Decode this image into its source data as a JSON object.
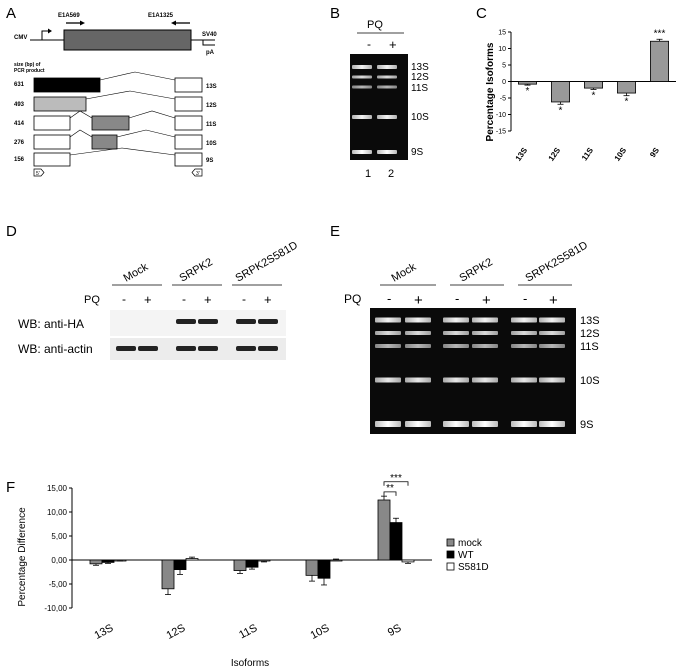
{
  "panel_letters": [
    "A",
    "B",
    "C",
    "D",
    "E",
    "F"
  ],
  "panelA": {
    "cmv": "CMV",
    "primer_fwd": "E1A569",
    "primer_rev": "E1A1325",
    "sv40": "SV40",
    "pa": "pA",
    "size_header_1": "size (bp) of",
    "size_header_2": "PCR product",
    "rows": [
      {
        "size": "631",
        "isoform": "13S"
      },
      {
        "size": "493",
        "isoform": "12S"
      },
      {
        "size": "414",
        "isoform": "11S"
      },
      {
        "size": "276",
        "isoform": "10S"
      },
      {
        "size": "156",
        "isoform": "9S"
      }
    ],
    "exon_left": "5'",
    "exon_right": "3'"
  },
  "panelB": {
    "treatment": "PQ",
    "minus": "-",
    "plus": "+",
    "bands": [
      "13S",
      "12S",
      "11S",
      "10S",
      "9S"
    ],
    "lanes": [
      "1",
      "2"
    ]
  },
  "panelE": {
    "treatment": "PQ",
    "groups": [
      "Mock",
      "SRPK2",
      "SRPK2S581D"
    ],
    "minus": "-",
    "plus": "+",
    "bands": [
      "13S",
      "12S",
      "11S",
      "10S",
      "9S"
    ]
  },
  "panelD": {
    "treatment": "PQ",
    "groups": [
      "Mock",
      "SRPK2",
      "SRPK2S581D"
    ],
    "minus": "-",
    "plus": "+",
    "blot1": "WB: anti-HA",
    "blot2": "WB: anti-actin"
  },
  "chart_data": [
    {
      "type": "bar",
      "panel": "C",
      "ylabel": "Percentage Isoforms",
      "categories": [
        "13S",
        "12S",
        "11S",
        "10S",
        "9S"
      ],
      "values": [
        -0.8,
        -6.2,
        -2.0,
        -3.5,
        12.2
      ],
      "errors": [
        0.3,
        0.7,
        0.4,
        0.8,
        0.6
      ],
      "significance": [
        "*",
        "*",
        "*",
        "*",
        "***"
      ],
      "ylim": [
        -15,
        15
      ],
      "yticks": [
        "-15",
        "-10",
        "-5",
        "0",
        "5",
        "10",
        "15"
      ]
    },
    {
      "type": "bar",
      "panel": "F",
      "xlabel": "Isoforms",
      "ylabel": "Percentage Difference",
      "categories": [
        "13S",
        "12S",
        "11S",
        "10S",
        "9S"
      ],
      "series": [
        {
          "name": "mock",
          "color": "#888888",
          "values": [
            -0.8,
            -6.0,
            -2.2,
            -3.2,
            12.5
          ],
          "errors": [
            0.3,
            1.2,
            0.6,
            1.2,
            0.8
          ]
        },
        {
          "name": "WT",
          "color": "#000000",
          "values": [
            -0.5,
            -2.0,
            -1.5,
            -3.8,
            7.8
          ],
          "errors": [
            0.2,
            1.0,
            0.4,
            1.4,
            0.9
          ]
        },
        {
          "name": "S581D",
          "color": "#ffffff",
          "values": [
            -0.1,
            0.3,
            -0.2,
            0.0,
            -0.4
          ],
          "errors": [
            0.1,
            0.3,
            0.2,
            0.2,
            0.3
          ]
        }
      ],
      "ylim": [
        -10,
        15
      ],
      "yticks": [
        "-10,00",
        "-5,00",
        "0,00",
        "5,00",
        "10,00",
        "15,00"
      ],
      "significance": [
        {
          "label": "**",
          "between": "mock-WT"
        },
        {
          "label": "***",
          "between": "mock-S581D"
        }
      ]
    }
  ]
}
